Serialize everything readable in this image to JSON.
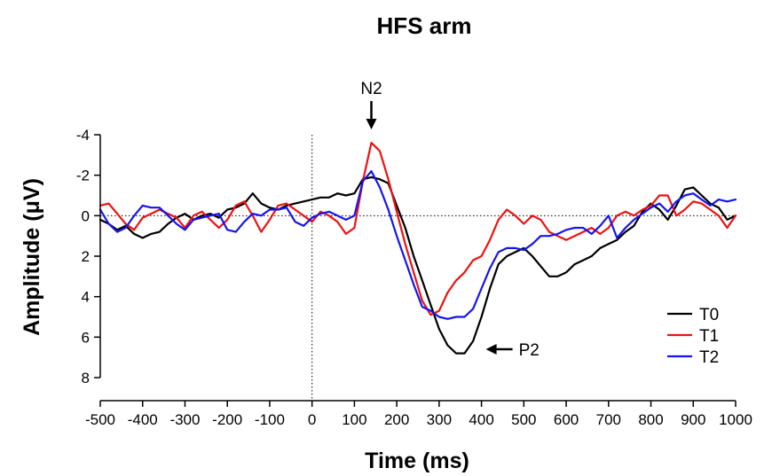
{
  "chart_data": {
    "type": "line",
    "title": "HFS arm",
    "xlabel": "Time (ms)",
    "ylabel": "Amplitude (μV)",
    "xlim": [
      -500,
      1000
    ],
    "ylim": [
      -4,
      8
    ],
    "y_inverted": true,
    "xticks": [
      -500,
      -400,
      -300,
      -200,
      -100,
      0,
      100,
      200,
      300,
      400,
      500,
      600,
      700,
      800,
      900,
      1000
    ],
    "yticks": [
      -4,
      -2,
      0,
      2,
      4,
      6,
      8
    ],
    "grid": false,
    "reference_lines": [
      {
        "orientation": "horizontal",
        "value": 0,
        "style": "dotted"
      },
      {
        "orientation": "vertical",
        "value": 0,
        "style": "dotted"
      }
    ],
    "legend": {
      "placement": "bottom-right"
    },
    "annotations": [
      {
        "text": "N2",
        "x": 140,
        "y": -4.0,
        "arrow": "down"
      },
      {
        "text": "P2",
        "x": 400,
        "y": 6.6,
        "arrow": "left"
      }
    ],
    "series": [
      {
        "name": "T0",
        "color": "#000000",
        "x": [
          -500,
          -480,
          -460,
          -440,
          -420,
          -400,
          -380,
          -360,
          -340,
          -320,
          -300,
          -280,
          -260,
          -240,
          -220,
          -200,
          -180,
          -160,
          -140,
          -120,
          -100,
          -80,
          -60,
          -40,
          -20,
          0,
          20,
          40,
          60,
          80,
          100,
          120,
          140,
          160,
          180,
          200,
          220,
          240,
          260,
          280,
          300,
          320,
          340,
          360,
          380,
          400,
          420,
          440,
          460,
          480,
          500,
          520,
          540,
          560,
          580,
          600,
          620,
          640,
          660,
          680,
          700,
          720,
          740,
          760,
          780,
          800,
          820,
          840,
          860,
          880,
          900,
          920,
          940,
          960,
          980,
          1000
        ],
        "values": [
          0.2,
          0.4,
          0.7,
          0.5,
          0.9,
          1.1,
          0.9,
          0.8,
          0.4,
          0.1,
          -0.1,
          0.2,
          0.0,
          -0.1,
          0.1,
          -0.3,
          -0.4,
          -0.6,
          -1.1,
          -0.6,
          -0.4,
          -0.3,
          -0.5,
          -0.6,
          -0.7,
          -0.8,
          -0.9,
          -0.9,
          -1.1,
          -1.0,
          -1.1,
          -1.8,
          -1.9,
          -1.8,
          -1.6,
          -0.5,
          0.6,
          2.0,
          3.2,
          4.4,
          5.6,
          6.4,
          6.8,
          6.8,
          6.2,
          5.0,
          3.6,
          2.4,
          2.0,
          1.8,
          1.6,
          2.0,
          2.5,
          3.0,
          3.0,
          2.8,
          2.4,
          2.2,
          2.0,
          1.6,
          1.4,
          1.2,
          0.8,
          0.5,
          -0.2,
          -0.6,
          -0.3,
          0.2,
          -0.5,
          -1.3,
          -1.4,
          -1.0,
          -0.6,
          -0.4,
          0.2,
          0.0
        ]
      },
      {
        "name": "T1",
        "color": "#ee1111",
        "x": [
          -500,
          -480,
          -460,
          -440,
          -420,
          -400,
          -380,
          -360,
          -340,
          -320,
          -300,
          -280,
          -260,
          -240,
          -220,
          -200,
          -180,
          -160,
          -140,
          -120,
          -100,
          -80,
          -60,
          -40,
          -20,
          0,
          20,
          40,
          60,
          80,
          100,
          120,
          140,
          160,
          180,
          200,
          220,
          240,
          260,
          280,
          300,
          320,
          340,
          360,
          380,
          400,
          420,
          440,
          460,
          480,
          500,
          520,
          540,
          560,
          580,
          600,
          620,
          640,
          660,
          680,
          700,
          720,
          740,
          760,
          780,
          800,
          820,
          840,
          860,
          880,
          900,
          920,
          940,
          960,
          980,
          1000
        ],
        "values": [
          -0.5,
          -0.6,
          -0.1,
          0.4,
          0.7,
          0.1,
          -0.1,
          -0.3,
          -0.1,
          0.1,
          0.6,
          0.0,
          -0.2,
          0.2,
          0.6,
          0.2,
          -0.5,
          -0.7,
          0.0,
          0.8,
          0.2,
          -0.5,
          -0.6,
          -0.3,
          0.0,
          0.3,
          -0.2,
          0.0,
          0.3,
          0.9,
          0.6,
          -1.7,
          -3.6,
          -3.2,
          -1.8,
          -0.2,
          1.4,
          2.8,
          4.2,
          4.9,
          4.7,
          3.8,
          3.2,
          2.8,
          2.2,
          2.0,
          1.2,
          0.2,
          -0.3,
          0.0,
          0.4,
          0.0,
          0.2,
          0.8,
          1.0,
          1.2,
          1.0,
          0.8,
          0.6,
          0.9,
          0.6,
          0.0,
          -0.2,
          0.0,
          -0.3,
          -0.5,
          -1.0,
          -1.0,
          0.0,
          -0.3,
          -0.7,
          -0.6,
          -0.3,
          0.0,
          0.6,
          0.0
        ]
      },
      {
        "name": "T2",
        "color": "#1515ee",
        "x": [
          -500,
          -480,
          -460,
          -440,
          -420,
          -400,
          -380,
          -360,
          -340,
          -320,
          -300,
          -280,
          -260,
          -240,
          -220,
          -200,
          -180,
          -160,
          -140,
          -120,
          -100,
          -80,
          -60,
          -40,
          -20,
          0,
          20,
          40,
          60,
          80,
          100,
          120,
          140,
          160,
          180,
          200,
          220,
          240,
          260,
          280,
          300,
          320,
          340,
          360,
          380,
          400,
          420,
          440,
          460,
          480,
          500,
          520,
          540,
          560,
          580,
          600,
          620,
          640,
          660,
          680,
          700,
          720,
          740,
          760,
          780,
          800,
          820,
          840,
          860,
          880,
          900,
          920,
          940,
          960,
          980,
          1000
        ],
        "values": [
          -0.3,
          0.4,
          0.8,
          0.6,
          0.0,
          -0.5,
          -0.4,
          -0.4,
          0.0,
          0.4,
          0.7,
          0.2,
          0.1,
          0.0,
          -0.1,
          0.7,
          0.8,
          0.3,
          -0.1,
          0.0,
          -0.3,
          -0.3,
          -0.4,
          0.3,
          0.5,
          0.1,
          -0.1,
          -0.2,
          0.0,
          0.2,
          0.0,
          -1.7,
          -2.2,
          -1.4,
          -0.3,
          1.0,
          2.2,
          3.4,
          4.5,
          4.7,
          5.0,
          5.1,
          5.0,
          5.0,
          4.6,
          3.6,
          2.6,
          1.8,
          1.6,
          1.6,
          1.7,
          1.4,
          1.0,
          1.0,
          0.9,
          0.7,
          0.6,
          0.6,
          0.9,
          0.5,
          0.0,
          1.1,
          0.6,
          0.2,
          -0.1,
          -0.4,
          -0.6,
          -0.2,
          -0.7,
          -1.0,
          -1.1,
          -0.8,
          -0.5,
          -0.8,
          -0.7,
          -0.8
        ]
      }
    ]
  }
}
